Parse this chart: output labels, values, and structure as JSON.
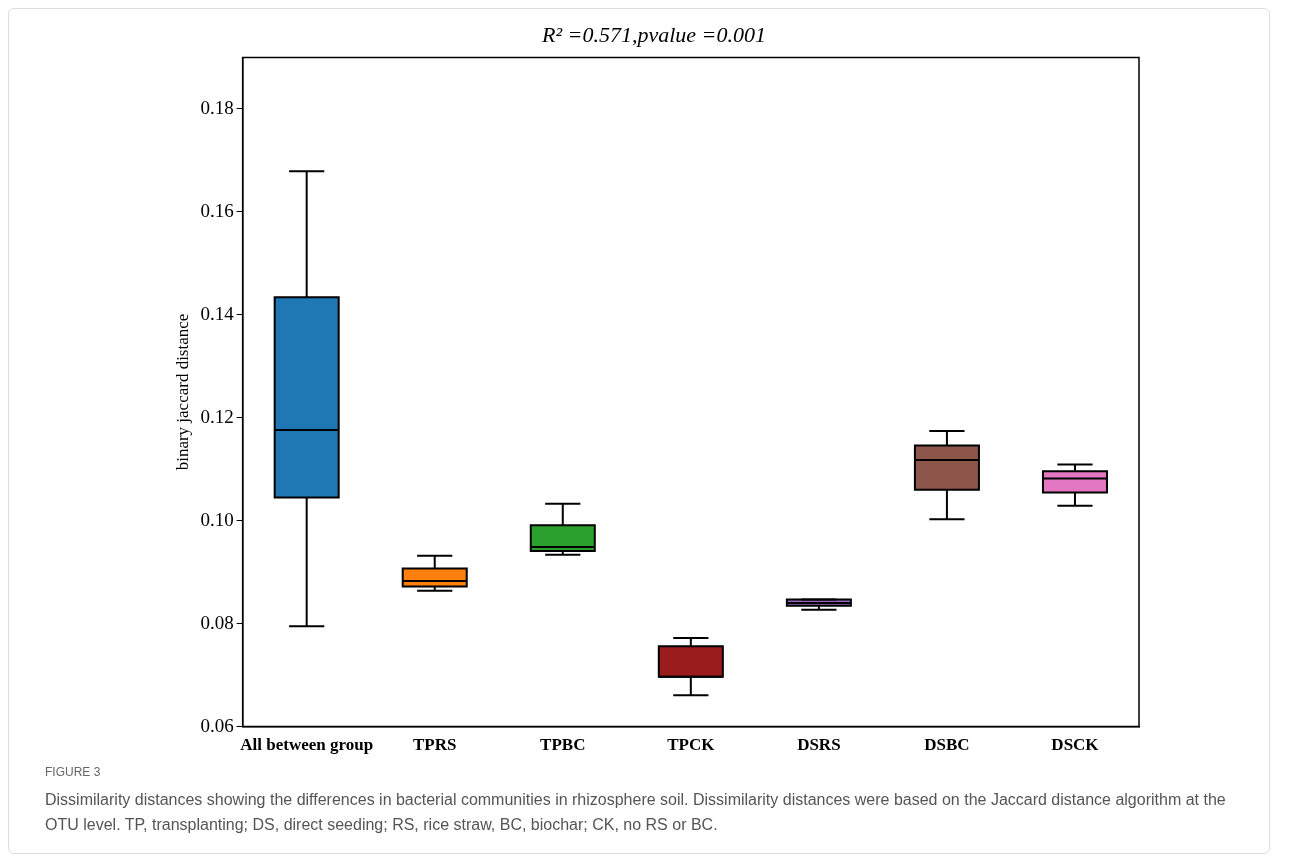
{
  "chart_data": {
    "type": "box",
    "title": "R² =0.571,pvalue =0.001",
    "ylabel": "binary jaccard distance",
    "categories": [
      "All between group",
      "TPRS",
      "TPBC",
      "TPCK",
      "DSRS",
      "DSBC",
      "DSCK"
    ],
    "colors": [
      "#1f77b4",
      "#ff7f0e",
      "#2ca02c",
      "#9b1c1c",
      "#9467bd",
      "#8c564b",
      "#e377c2"
    ],
    "boxes": [
      {
        "low": 0.0795,
        "q1": 0.1045,
        "median": 0.1176,
        "q3": 0.1434,
        "high": 0.1679
      },
      {
        "low": 0.0864,
        "q1": 0.0872,
        "median": 0.0883,
        "q3": 0.0907,
        "high": 0.0932
      },
      {
        "low": 0.0934,
        "q1": 0.0941,
        "median": 0.0949,
        "q3": 0.0991,
        "high": 0.1033
      },
      {
        "low": 0.0661,
        "q1": 0.0697,
        "median": 0.0697,
        "q3": 0.0756,
        "high": 0.0772
      },
      {
        "low": 0.0827,
        "q1": 0.0835,
        "median": 0.084,
        "q3": 0.0847,
        "high": 0.0847
      },
      {
        "low": 0.1003,
        "q1": 0.106,
        "median": 0.1118,
        "q3": 0.1146,
        "high": 0.1174
      },
      {
        "low": 0.1029,
        "q1": 0.1055,
        "median": 0.1082,
        "q3": 0.1096,
        "high": 0.1109
      }
    ],
    "ylim": [
      0.06,
      0.19
    ],
    "yticks": [
      0.06,
      0.08,
      {
        "value": 0.1,
        "label": "0.10"
      },
      0.12,
      0.14,
      0.16,
      0.18
    ],
    "grid": false,
    "legend": false,
    "annotations": [
      "FIGURE 3",
      "Dissimilarity distances showing the differences in bacterial communities in rhizosphere soil. Dissimilarity distances were based on the Jaccard distance algorithm at the OTU level. TP, transplanting; DS, direct seeding; RS, rice straw, BC, biochar; CK, no RS or BC."
    ]
  }
}
